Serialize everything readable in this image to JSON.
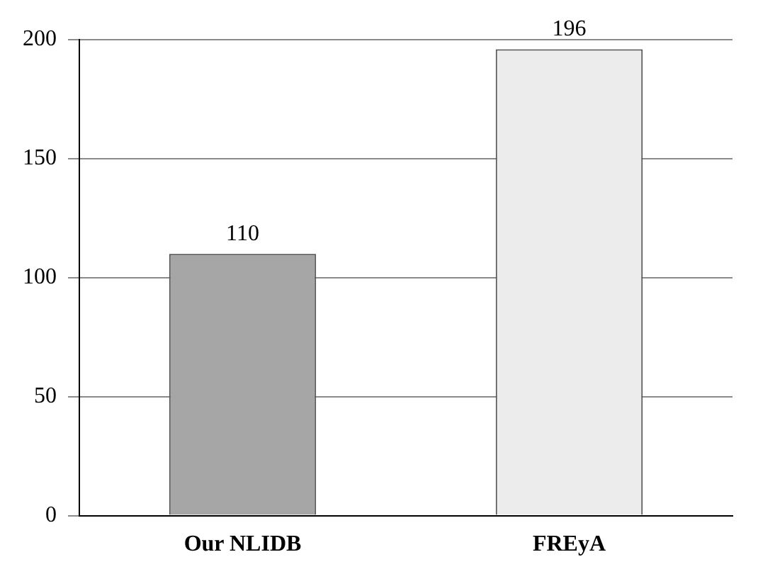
{
  "chart_data": {
    "type": "bar",
    "categories": [
      "Our NLIDB",
      "FREyA"
    ],
    "colors": [
      "#a6a6a6",
      "#ececec"
    ],
    "values": [
      110,
      196
    ],
    "ylim": [
      0,
      200
    ],
    "yticks": [
      0,
      50,
      100,
      150,
      200
    ],
    "grid": "y",
    "data_labels": true
  }
}
